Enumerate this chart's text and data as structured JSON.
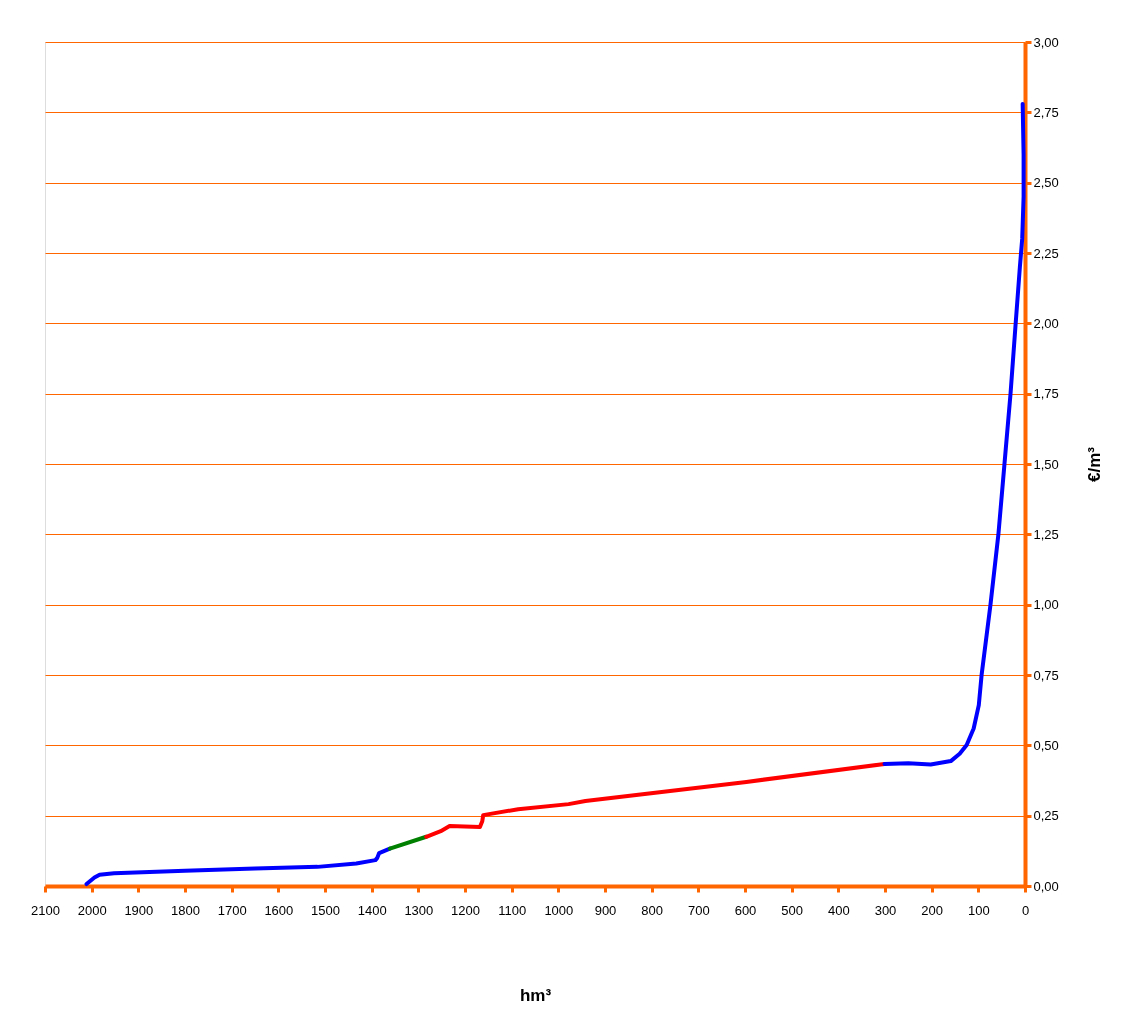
{
  "chart_data": {
    "type": "line",
    "xlabel": "hm³",
    "ylabel": "€/m³",
    "xlim": [
      2100,
      0
    ],
    "xticks": [
      2100,
      2000,
      1900,
      1800,
      1700,
      1600,
      1500,
      1400,
      1300,
      1200,
      1100,
      1000,
      900,
      800,
      700,
      600,
      500,
      400,
      300,
      200,
      100,
      0
    ],
    "ylim": [
      0,
      3
    ],
    "yticks": [
      {
        "value": 0,
        "label": "0,00"
      },
      {
        "value": 0.25,
        "label": "0,25"
      },
      {
        "value": 0.5,
        "label": "0,50"
      },
      {
        "value": 0.75,
        "label": "0,75"
      },
      {
        "value": 1,
        "label": "1,00"
      },
      {
        "value": 1.25,
        "label": "1,25"
      },
      {
        "value": 1.5,
        "label": "1,50"
      },
      {
        "value": 1.75,
        "label": "1,75"
      },
      {
        "value": 2,
        "label": "2,00"
      },
      {
        "value": 2.25,
        "label": "2,25"
      },
      {
        "value": 2.5,
        "label": "2,50"
      },
      {
        "value": 2.75,
        "label": "2,75"
      },
      {
        "value": 3,
        "label": "3,00"
      }
    ],
    "grid": "y",
    "line_style": "solid",
    "series": [
      {
        "color": "#0000ff",
        "x": [
          2011,
          1994,
          1983,
          1952,
          1800,
          1650,
          1516,
          1433,
          1392,
          1388,
          1384,
          1361
        ],
        "values": [
          0.007,
          0.03,
          0.04,
          0.045,
          0.054,
          0.062,
          0.068,
          0.08,
          0.092,
          0.1,
          0.117,
          0.133
        ]
      },
      {
        "color": "#008000",
        "x": [
          1361,
          1283
        ],
        "values": [
          0.133,
          0.175
        ]
      },
      {
        "color": "#ff0000",
        "x": [
          1283,
          1252,
          1233,
          1168,
          1163,
          1161,
          1086,
          978,
          942,
          597,
          301
        ],
        "values": [
          0.175,
          0.195,
          0.213,
          0.21,
          0.23,
          0.252,
          0.273,
          0.291,
          0.302,
          0.37,
          0.434
        ]
      },
      {
        "color": "#0000ff",
        "x": [
          301,
          250,
          202,
          159,
          140,
          125,
          110,
          99,
          93,
          74,
          57,
          44,
          31,
          20,
          11,
          6,
          3,
          3,
          5
        ],
        "values": [
          0.434,
          0.436,
          0.432,
          0.444,
          0.47,
          0.501,
          0.56,
          0.643,
          0.75,
          1.0,
          1.25,
          1.5,
          1.75,
          2.0,
          2.2,
          2.3,
          2.45,
          2.6,
          2.78
        ]
      }
    ]
  }
}
